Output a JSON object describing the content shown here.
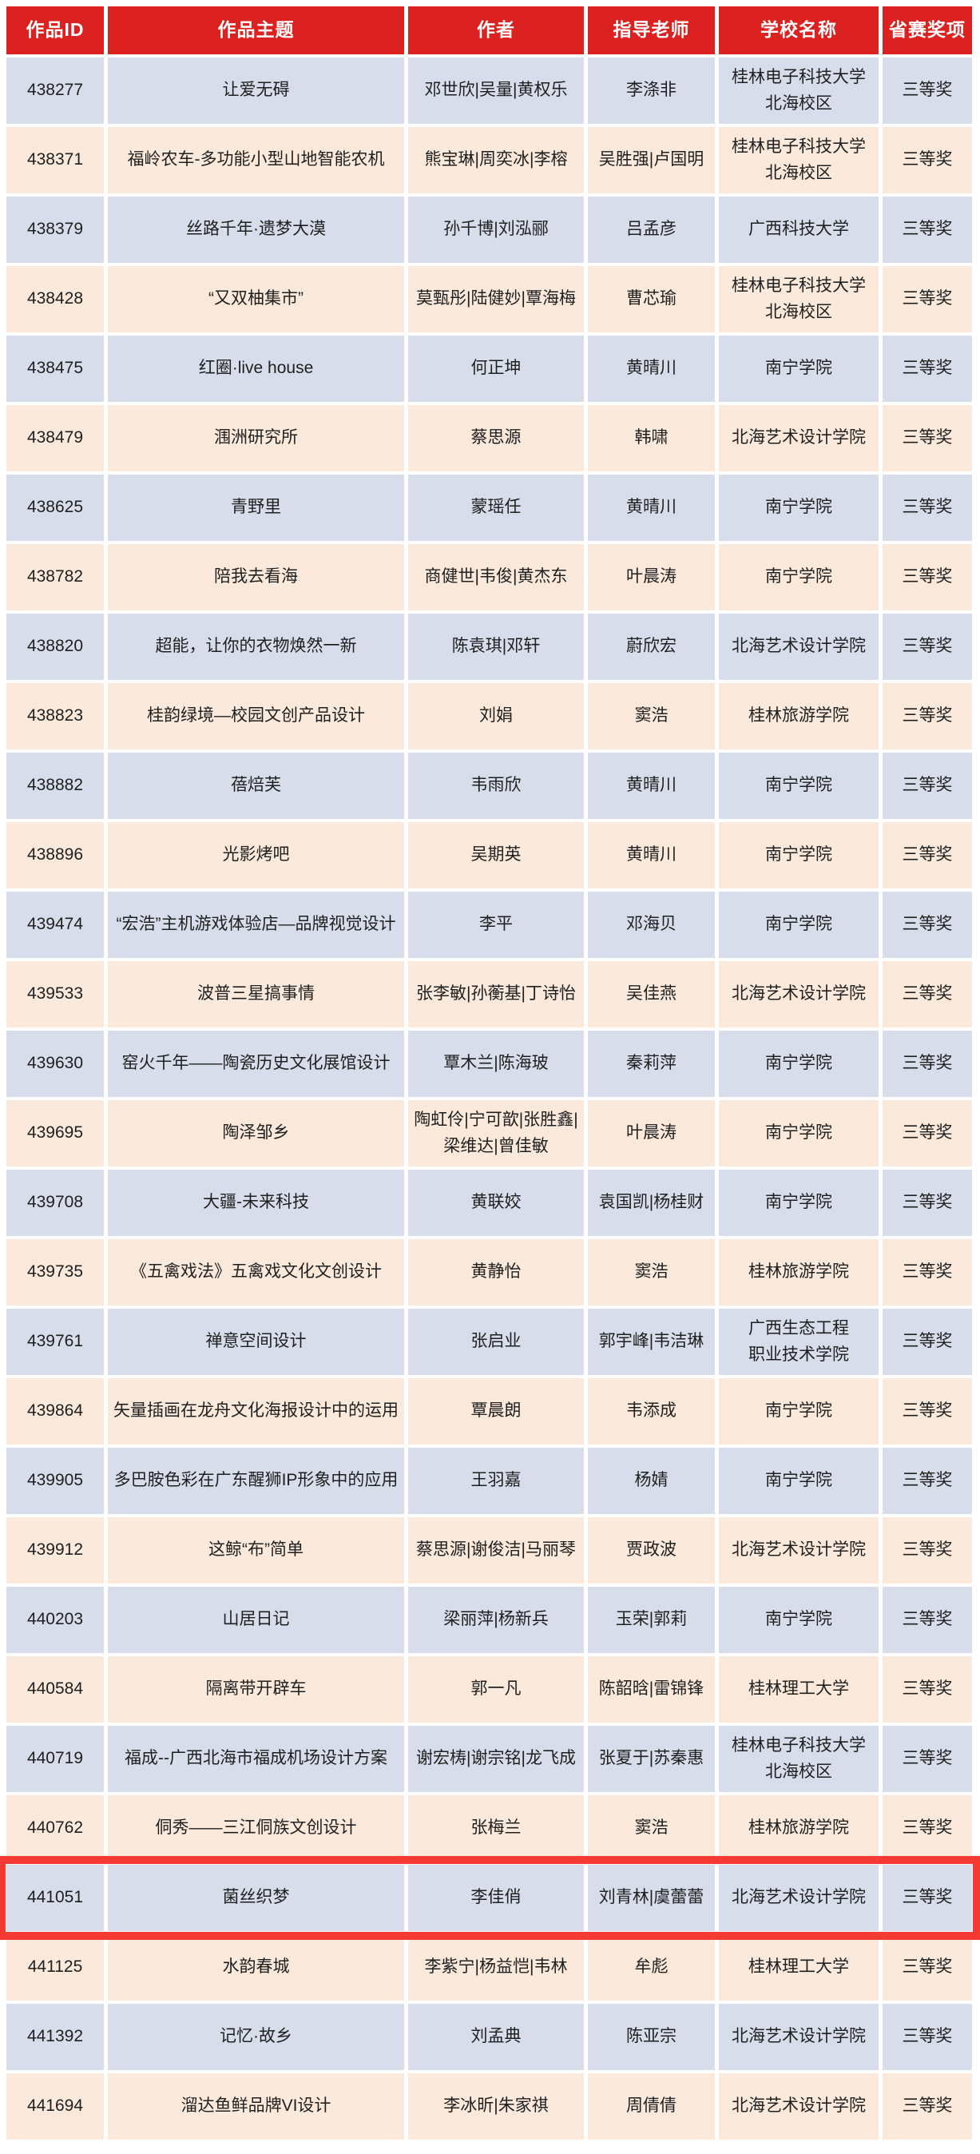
{
  "colors": {
    "header_bg": "#DB2220",
    "header_text": "#FFFFFF",
    "row_blue": "#D7DDEA",
    "row_peach": "#FBE9DC",
    "cell_text": "#1F1F1F",
    "highlight_border": "#F53A34",
    "page_bg": "#FFFFFF"
  },
  "table": {
    "headers": [
      "作品ID",
      "作品主题",
      "作者",
      "指导老师",
      "学校名称",
      "省赛奖项"
    ],
    "rows": [
      {
        "id": "438277",
        "theme": "让爱无碍",
        "authors": "邓世欣|吴量|黄权乐",
        "advisors": "李涤非",
        "school": "桂林电子科技大学\n北海校区",
        "award": "三等奖",
        "highlighted": false
      },
      {
        "id": "438371",
        "theme": "福岭农车-多功能小型山地智能农机",
        "authors": "熊宝琳|周奕冰|李榕",
        "advisors": "吴胜强|卢国明",
        "school": "桂林电子科技大学\n北海校区",
        "award": "三等奖",
        "highlighted": false
      },
      {
        "id": "438379",
        "theme": "丝路千年·遗梦大漠",
        "authors": "孙千博|刘泓郦",
        "advisors": "吕孟彦",
        "school": "广西科技大学",
        "award": "三等奖",
        "highlighted": false
      },
      {
        "id": "438428",
        "theme": "“又双柚集市”",
        "authors": "莫甄彤|陆健妙|覃海梅",
        "advisors": "曹芯瑜",
        "school": "桂林电子科技大学\n北海校区",
        "award": "三等奖",
        "highlighted": false
      },
      {
        "id": "438475",
        "theme": "红圈·live house",
        "authors": "何正坤",
        "advisors": "黄晴川",
        "school": "南宁学院",
        "award": "三等奖",
        "highlighted": false
      },
      {
        "id": "438479",
        "theme": "涠洲研究所",
        "authors": "蔡思源",
        "advisors": "韩啸",
        "school": "北海艺术设计学院",
        "award": "三等奖",
        "highlighted": false
      },
      {
        "id": "438625",
        "theme": "青野里",
        "authors": "蒙瑶任",
        "advisors": "黄晴川",
        "school": "南宁学院",
        "award": "三等奖",
        "highlighted": false
      },
      {
        "id": "438782",
        "theme": "陪我去看海",
        "authors": "商健世|韦俊|黄杰东",
        "advisors": "叶晨涛",
        "school": "南宁学院",
        "award": "三等奖",
        "highlighted": false
      },
      {
        "id": "438820",
        "theme": "超能，让你的衣物焕然一新",
        "authors": "陈袁琪|邓轩",
        "advisors": "蔚欣宏",
        "school": "北海艺术设计学院",
        "award": "三等奖",
        "highlighted": false
      },
      {
        "id": "438823",
        "theme": "桂韵绿境—校园文创产品设计",
        "authors": "刘娟",
        "advisors": "窦浩",
        "school": "桂林旅游学院",
        "award": "三等奖",
        "highlighted": false
      },
      {
        "id": "438882",
        "theme": "蓓焙芙",
        "authors": "韦雨欣",
        "advisors": "黄晴川",
        "school": "南宁学院",
        "award": "三等奖",
        "highlighted": false
      },
      {
        "id": "438896",
        "theme": "光影烤吧",
        "authors": "吴期英",
        "advisors": "黄晴川",
        "school": "南宁学院",
        "award": "三等奖",
        "highlighted": false
      },
      {
        "id": "439474",
        "theme": "“宏浩”主机游戏体验店—品牌视觉设计",
        "authors": "李平",
        "advisors": "邓海贝",
        "school": "南宁学院",
        "award": "三等奖",
        "highlighted": false
      },
      {
        "id": "439533",
        "theme": "波普三星搞事情",
        "authors": "张李敏|孙蘅基|丁诗怡",
        "advisors": "吴佳燕",
        "school": "北海艺术设计学院",
        "award": "三等奖",
        "highlighted": false
      },
      {
        "id": "439630",
        "theme": "窑火千年——陶瓷历史文化展馆设计",
        "authors": "覃木兰|陈海玻",
        "advisors": "秦莉萍",
        "school": "南宁学院",
        "award": "三等奖",
        "highlighted": false
      },
      {
        "id": "439695",
        "theme": "陶泽邹乡",
        "authors": "陶虹伶|宁可歆|张胜鑫|\n梁维达|曾佳敏",
        "advisors": "叶晨涛",
        "school": "南宁学院",
        "award": "三等奖",
        "highlighted": false
      },
      {
        "id": "439708",
        "theme": "大疆-未来科技",
        "authors": "黄联姣",
        "advisors": "袁国凯|杨桂财",
        "school": "南宁学院",
        "award": "三等奖",
        "highlighted": false
      },
      {
        "id": "439735",
        "theme": "《五禽戏法》五禽戏文化文创设计",
        "authors": "黄静怡",
        "advisors": "窦浩",
        "school": "桂林旅游学院",
        "award": "三等奖",
        "highlighted": false
      },
      {
        "id": "439761",
        "theme": "禅意空间设计",
        "authors": "张启业",
        "advisors": "郭宇峰|韦洁琳",
        "school": "广西生态工程\n职业技术学院",
        "award": "三等奖",
        "highlighted": false
      },
      {
        "id": "439864",
        "theme": "矢量插画在龙舟文化海报设计中的运用",
        "authors": "覃晨朗",
        "advisors": "韦添成",
        "school": "南宁学院",
        "award": "三等奖",
        "highlighted": false
      },
      {
        "id": "439905",
        "theme": "多巴胺色彩在广东醒狮IP形象中的应用",
        "authors": "王羽嘉",
        "advisors": "杨婧",
        "school": "南宁学院",
        "award": "三等奖",
        "highlighted": false
      },
      {
        "id": "439912",
        "theme": "这鲸“布”简单",
        "authors": "蔡思源|谢俊洁|马丽琴",
        "advisors": "贾政波",
        "school": "北海艺术设计学院",
        "award": "三等奖",
        "highlighted": false
      },
      {
        "id": "440203",
        "theme": "山居日记",
        "authors": "梁丽萍|杨新兵",
        "advisors": "玉荣|郭莉",
        "school": "南宁学院",
        "award": "三等奖",
        "highlighted": false
      },
      {
        "id": "440584",
        "theme": "隔离带开辟车",
        "authors": "郭一凡",
        "advisors": "陈韶晗|雷锦锋",
        "school": "桂林理工大学",
        "award": "三等奖",
        "highlighted": false
      },
      {
        "id": "440719",
        "theme": "福成--广西北海市福成机场设计方案",
        "authors": "谢宏梼|谢宗铭|龙飞成",
        "advisors": "张夏于|苏秦惠",
        "school": "桂林电子科技大学\n北海校区",
        "award": "三等奖",
        "highlighted": false
      },
      {
        "id": "440762",
        "theme": "侗秀——三江侗族文创设计",
        "authors": "张梅兰",
        "advisors": "窦浩",
        "school": "桂林旅游学院",
        "award": "三等奖",
        "highlighted": false
      },
      {
        "id": "441051",
        "theme": "菌丝织梦",
        "authors": "李佳俏",
        "advisors": "刘青林|虞蕾蕾",
        "school": "北海艺术设计学院",
        "award": "三等奖",
        "highlighted": true
      },
      {
        "id": "441125",
        "theme": "水韵春城",
        "authors": "李紫宁|杨益恺|韦林",
        "advisors": "牟彪",
        "school": "桂林理工大学",
        "award": "三等奖",
        "highlighted": false
      },
      {
        "id": "441392",
        "theme": "记忆·故乡",
        "authors": "刘孟典",
        "advisors": "陈亚宗",
        "school": "北海艺术设计学院",
        "award": "三等奖",
        "highlighted": false
      },
      {
        "id": "441694",
        "theme": "溜达鱼鲜品牌VI设计",
        "authors": "李冰昕|朱家祺",
        "advisors": "周倩倩",
        "school": "北海艺术设计学院",
        "award": "三等奖",
        "highlighted": false
      }
    ]
  }
}
